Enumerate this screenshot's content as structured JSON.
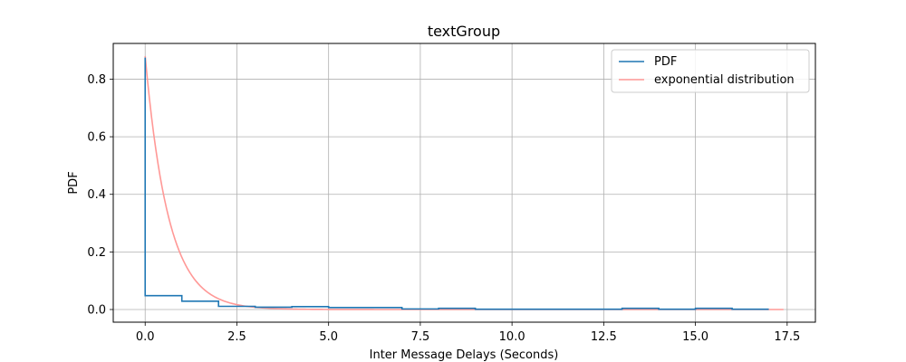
{
  "chart_data": {
    "type": "line",
    "title": "textGroup",
    "xlabel": "Inter Message Delays (Seconds)",
    "ylabel": "PDF",
    "xlim": [
      -0.87,
      18.27
    ],
    "ylim": [
      -0.044,
      0.924
    ],
    "x_ticks": [
      0,
      2.5,
      5,
      7.5,
      10,
      12.5,
      15,
      17.5
    ],
    "x_tick_labels": [
      "0.0",
      "2.5",
      "5.0",
      "7.5",
      "10.0",
      "12.5",
      "15.0",
      "17.5"
    ],
    "y_ticks": [
      0.0,
      0.2,
      0.4,
      0.6,
      0.8
    ],
    "y_tick_labels": [
      "0.0",
      "0.2",
      "0.4",
      "0.6",
      "0.8"
    ],
    "grid": true,
    "legend_position": "top-right",
    "series": [
      {
        "name": "PDF",
        "kind": "step",
        "color": "#1f77b4",
        "x": [
          0,
          0,
          1,
          2,
          3,
          4,
          5,
          6,
          7,
          8,
          9,
          10,
          11,
          12,
          13,
          14,
          15,
          16,
          17
        ],
        "y": [
          0.875,
          0.048,
          0.029,
          0.011,
          0.008,
          0.01,
          0.007,
          0.007,
          0.002,
          0.004,
          0.001,
          0.001,
          0.001,
          0.001,
          0.004,
          0.001,
          0.004,
          0.001,
          0.001
        ]
      },
      {
        "name": "exponential distribution",
        "kind": "curve",
        "color": "#ff9896",
        "function": "0.88 * exp(-1.58 * x)",
        "x_range": [
          0,
          17.4
        ]
      }
    ]
  }
}
